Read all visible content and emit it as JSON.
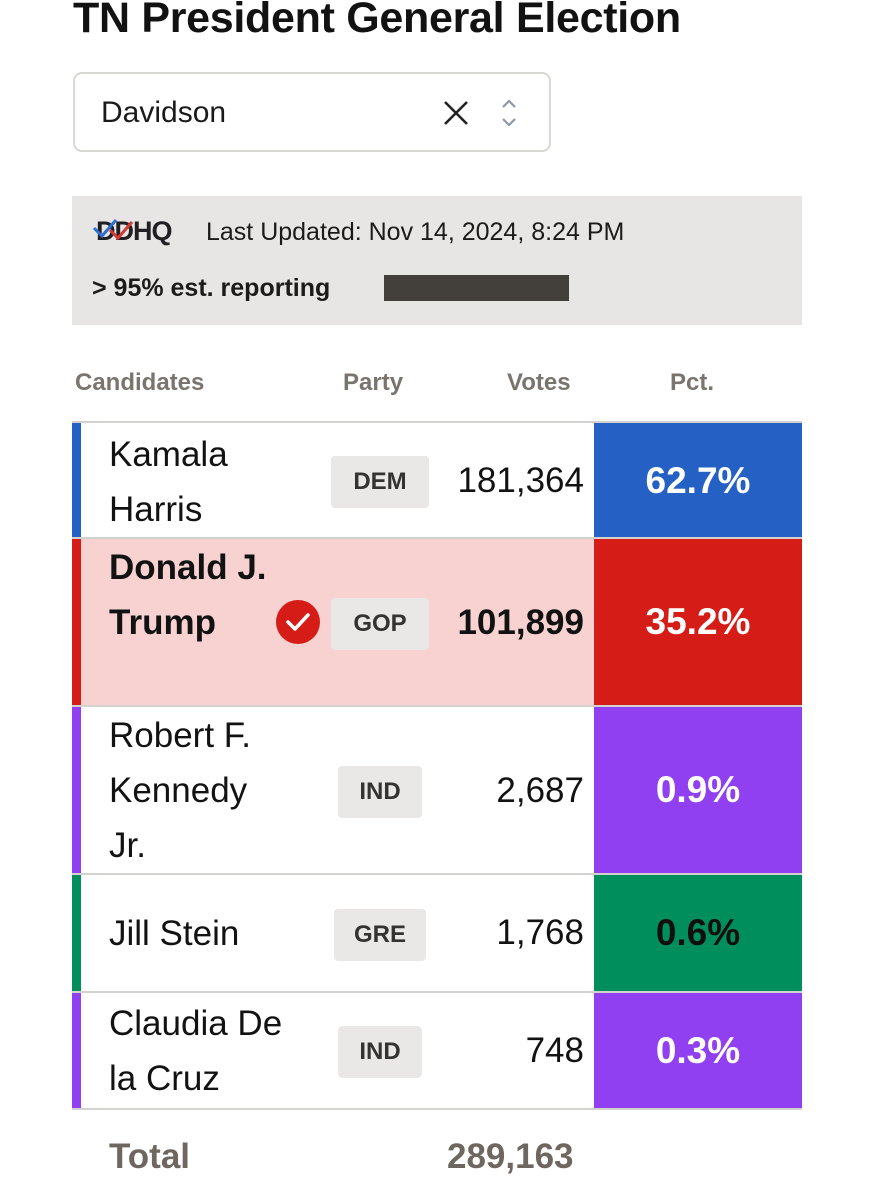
{
  "title": "TN President General Election",
  "county_select": {
    "value": "Davidson"
  },
  "update": {
    "logo_text": "DDHQ",
    "last_updated": "Last Updated: Nov 14, 2024, 8:24 PM",
    "reporting_label": "> 95% est. reporting",
    "reporting_fraction": 0.95
  },
  "columns": {
    "candidates": "Candidates",
    "party": "Party",
    "votes": "Votes",
    "pct": "Pct."
  },
  "candidates": [
    {
      "name": "Kamala Harris",
      "party": "DEM",
      "votes": "181,364",
      "pct": "62.7%",
      "color": "#2561c4",
      "winner": false
    },
    {
      "name": "Donald J. Trump",
      "party": "GOP",
      "votes": "101,899",
      "pct": "35.2%",
      "color": "#d61c17",
      "winner": true
    },
    {
      "name": "Robert F. Kennedy Jr.",
      "party": "IND",
      "votes": "2,687",
      "pct": "0.9%",
      "color": "#9040f1",
      "winner": false
    },
    {
      "name": "Jill Stein",
      "party": "GRE",
      "votes": "1,768",
      "pct": "0.6%",
      "color": "#008f5c",
      "winner": false
    },
    {
      "name": "Claudia De la Cruz",
      "party": "IND",
      "votes": "748",
      "pct": "0.3%",
      "color": "#9040f1",
      "winner": false
    }
  ],
  "total": {
    "label": "Total",
    "votes": "289,163"
  },
  "colors": {
    "winner_row_bg": "#f7d2d1",
    "check": "#d61c17",
    "dark_pct_text": "#0f0f0f"
  }
}
